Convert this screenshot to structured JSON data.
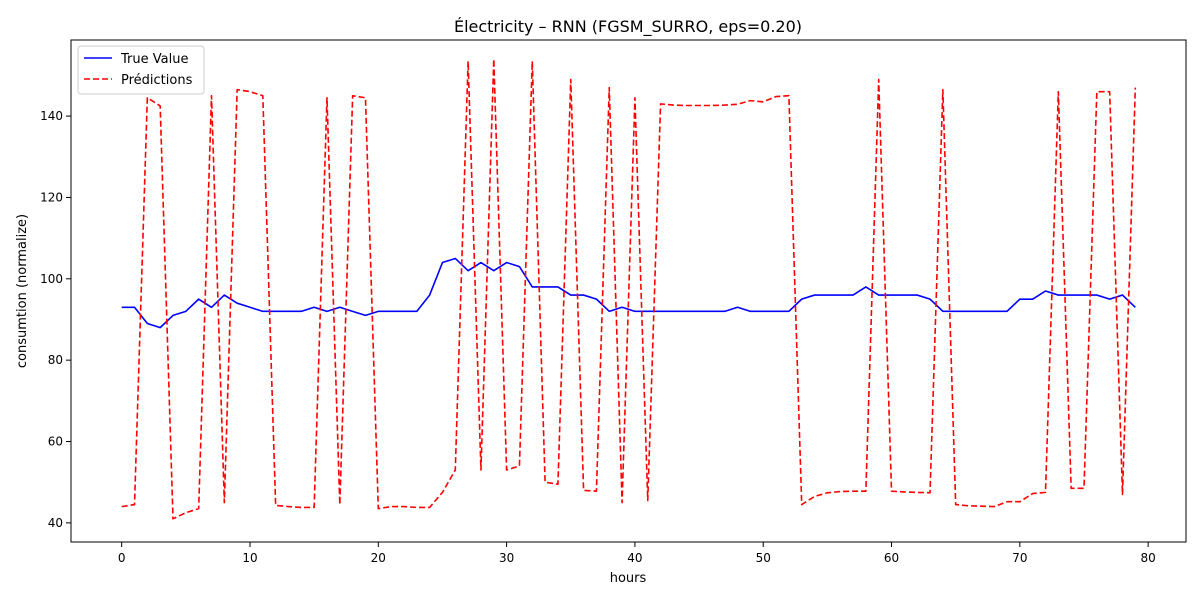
{
  "chart_data": {
    "type": "line",
    "title": "Électricity – RNN (FGSM_SURRO, eps=0.20)",
    "xlabel": "hours",
    "ylabel": "consumtion (normalize)",
    "xlim": [
      -3.95,
      82.95
    ],
    "ylim": [
      35.3,
      158.7
    ],
    "xticks": [
      0,
      10,
      20,
      30,
      40,
      50,
      60,
      70,
      80
    ],
    "yticks": [
      40,
      60,
      80,
      100,
      120,
      140
    ],
    "grid": false,
    "legend": "top-left",
    "series": [
      {
        "name": "True Value",
        "color": "#0000ff",
        "dash": "solid",
        "x": [
          0,
          1,
          2,
          3,
          4,
          5,
          6,
          7,
          8,
          9,
          10,
          11,
          12,
          13,
          14,
          15,
          16,
          17,
          18,
          19,
          20,
          21,
          22,
          23,
          24,
          25,
          26,
          27,
          28,
          29,
          30,
          31,
          32,
          33,
          34,
          35,
          36,
          37,
          38,
          39,
          40,
          41,
          42,
          43,
          44,
          45,
          46,
          47,
          48,
          49,
          50,
          51,
          52,
          53,
          54,
          55,
          56,
          57,
          58,
          59,
          60,
          61,
          62,
          63,
          64,
          65,
          66,
          67,
          68,
          69,
          70,
          71,
          72,
          73,
          74,
          75,
          76,
          77,
          78,
          79
        ],
        "y": [
          93,
          93,
          89,
          88,
          91,
          92,
          95,
          93,
          96,
          94,
          93,
          92,
          92,
          92,
          92,
          93,
          92,
          93,
          92,
          91,
          92,
          92,
          92,
          92,
          96,
          104,
          105,
          102,
          104,
          102,
          104,
          103,
          98,
          98,
          98,
          96,
          96,
          95,
          92,
          93,
          92,
          92,
          92,
          92,
          92,
          92,
          92,
          92,
          93,
          92,
          92,
          92,
          92,
          95,
          96,
          96,
          96,
          96,
          98,
          96,
          96,
          96,
          96,
          95,
          92,
          92,
          92,
          92,
          92,
          92,
          95,
          95,
          97,
          96,
          96,
          96,
          96,
          95,
          96,
          93
        ]
      },
      {
        "name": "Prédictions",
        "color": "#ff0000",
        "dash": "dashed",
        "x": [
          0,
          1,
          2,
          3,
          4,
          5,
          6,
          7,
          8,
          9,
          10,
          11,
          12,
          13,
          14,
          15,
          16,
          17,
          18,
          19,
          20,
          21,
          22,
          23,
          24,
          25,
          26,
          27,
          28,
          29,
          30,
          31,
          32,
          33,
          34,
          35,
          36,
          37,
          38,
          39,
          40,
          41,
          42,
          43,
          44,
          45,
          46,
          47,
          48,
          49,
          50,
          51,
          52,
          53,
          54,
          55,
          56,
          57,
          58,
          59,
          60,
          61,
          62,
          63,
          64,
          65,
          66,
          67,
          68,
          69,
          70,
          71,
          72,
          73,
          74,
          75,
          76,
          77,
          78,
          79
        ],
        "y": [
          44,
          44.5,
          144.5,
          142.5,
          41,
          42.5,
          43.5,
          145,
          45,
          146.5,
          146,
          145,
          44.3,
          44,
          43.8,
          43.8,
          144.5,
          44.5,
          145,
          144.5,
          43.5,
          44,
          44,
          43.8,
          43.8,
          47.5,
          53,
          153.5,
          53,
          154,
          53,
          54,
          153.5,
          50,
          49.5,
          149,
          48,
          47.8,
          147,
          45,
          144.5,
          45.5,
          143,
          142.7,
          142.6,
          142.6,
          142.6,
          142.7,
          142.9,
          143.8,
          143.5,
          144.8,
          145,
          44.5,
          46.5,
          47.4,
          47.7,
          47.8,
          47.8,
          149,
          47.8,
          47.6,
          47.5,
          47.4,
          146.5,
          44.5,
          44.2,
          44.1,
          44,
          45.2,
          45.2,
          47.2,
          47.5,
          146,
          48.5,
          48.5,
          146,
          146,
          47,
          147
        ]
      }
    ]
  }
}
